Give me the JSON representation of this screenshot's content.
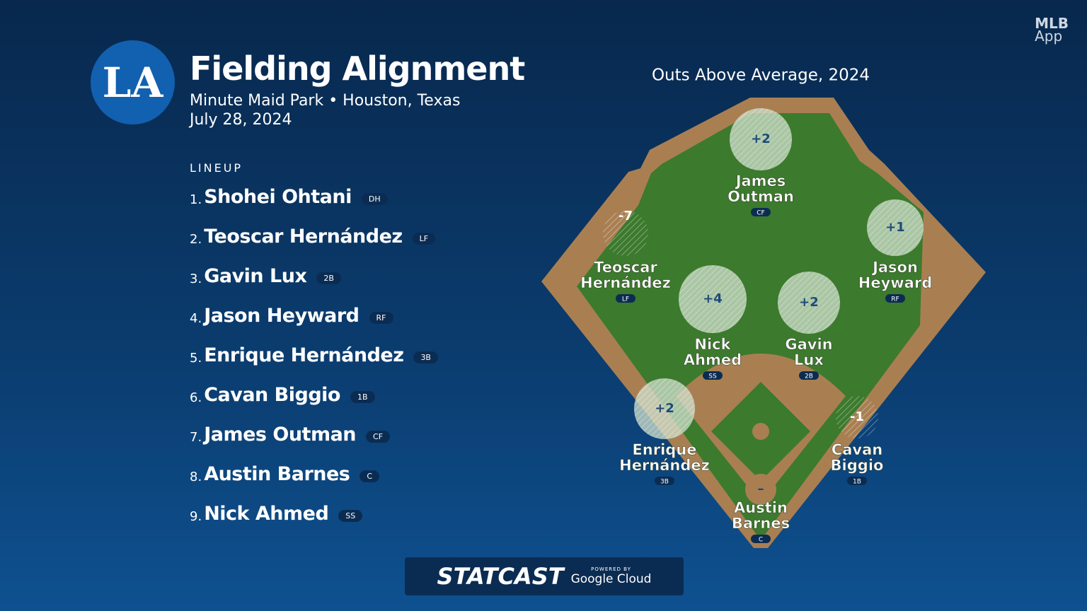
{
  "header": {
    "logo": "LA",
    "title": "Fielding Alignment",
    "venue": "Minute Maid Park • Houston, Texas",
    "date": "July 28, 2024"
  },
  "brand": {
    "line1": "MLB",
    "line2": "App"
  },
  "lineup": {
    "label": "LINEUP",
    "items": [
      {
        "order": "1.",
        "name": "Shohei Ohtani",
        "pos": "DH"
      },
      {
        "order": "2.",
        "name": "Teoscar Hernández",
        "pos": "LF"
      },
      {
        "order": "3.",
        "name": "Gavin Lux",
        "pos": "2B"
      },
      {
        "order": "4.",
        "name": "Jason Heyward",
        "pos": "RF"
      },
      {
        "order": "5.",
        "name": "Enrique Hernández",
        "pos": "3B"
      },
      {
        "order": "6.",
        "name": "Cavan Biggio",
        "pos": "1B"
      },
      {
        "order": "7.",
        "name": "James Outman",
        "pos": "CF"
      },
      {
        "order": "8.",
        "name": "Austin Barnes",
        "pos": "C"
      },
      {
        "order": "9.",
        "name": "Nick Ahmed",
        "pos": "SS"
      }
    ]
  },
  "field": {
    "title": "Outs Above Average, 2024",
    "fielders": [
      {
        "oaa": "+2",
        "name": [
          "James",
          "Outman"
        ],
        "pos": "CF"
      },
      {
        "oaa": "-7",
        "name": [
          "Teoscar",
          "Hernández"
        ],
        "pos": "LF"
      },
      {
        "oaa": "+1",
        "name": [
          "Jason",
          "Heyward"
        ],
        "pos": "RF"
      },
      {
        "oaa": "+4",
        "name": [
          "Nick",
          "Ahmed"
        ],
        "pos": "SS"
      },
      {
        "oaa": "+2",
        "name": [
          "Gavin",
          "Lux"
        ],
        "pos": "2B"
      },
      {
        "oaa": "+2",
        "name": [
          "Enrique",
          "Hernández"
        ],
        "pos": "3B"
      },
      {
        "oaa": "-1",
        "name": [
          "Cavan",
          "Biggio"
        ],
        "pos": "1B"
      },
      {
        "oaa": "–",
        "name": [
          "Austin",
          "Barnes"
        ],
        "pos": "C"
      }
    ]
  },
  "footer": {
    "brand": "STATCAST",
    "powered": "POWERED BY",
    "partner": "Google Cloud"
  }
}
